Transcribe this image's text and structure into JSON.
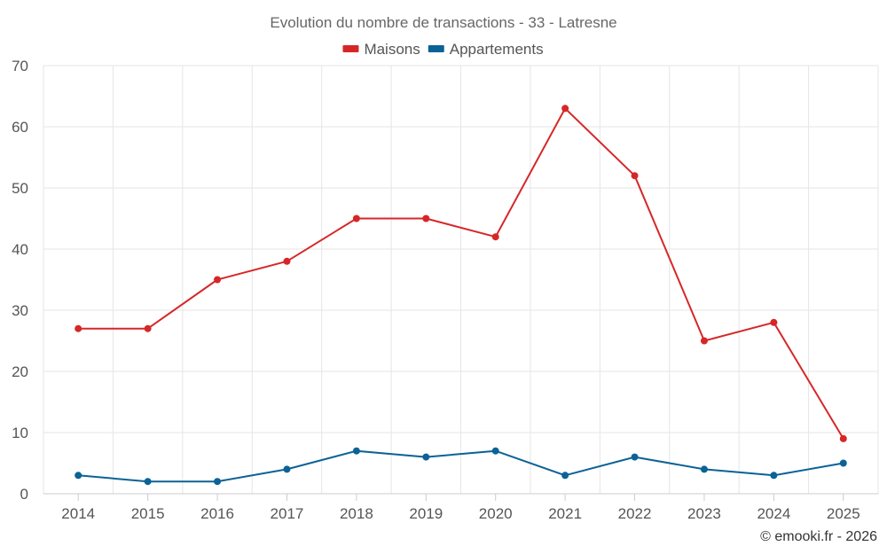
{
  "chart_data": {
    "type": "line",
    "title": "Evolution du nombre de transactions - 33 - Latresne",
    "categories": [
      "2014",
      "2015",
      "2016",
      "2017",
      "2018",
      "2019",
      "2020",
      "2021",
      "2022",
      "2023",
      "2024",
      "2025"
    ],
    "series": [
      {
        "name": "Maisons",
        "color": "#d62728",
        "values": [
          27,
          27,
          35,
          38,
          45,
          45,
          42,
          63,
          52,
          25,
          28,
          9
        ]
      },
      {
        "name": "Appartements",
        "color": "#0b6296",
        "values": [
          3,
          2,
          2,
          4,
          7,
          6,
          7,
          3,
          6,
          4,
          3,
          5
        ]
      }
    ],
    "ylim": [
      0,
      70
    ],
    "yticks": [
      0,
      10,
      20,
      30,
      40,
      50,
      60,
      70
    ],
    "grid": true,
    "legend": "top-center",
    "xlabel": "",
    "ylabel": ""
  },
  "credit": "© emooki.fr - 2026"
}
